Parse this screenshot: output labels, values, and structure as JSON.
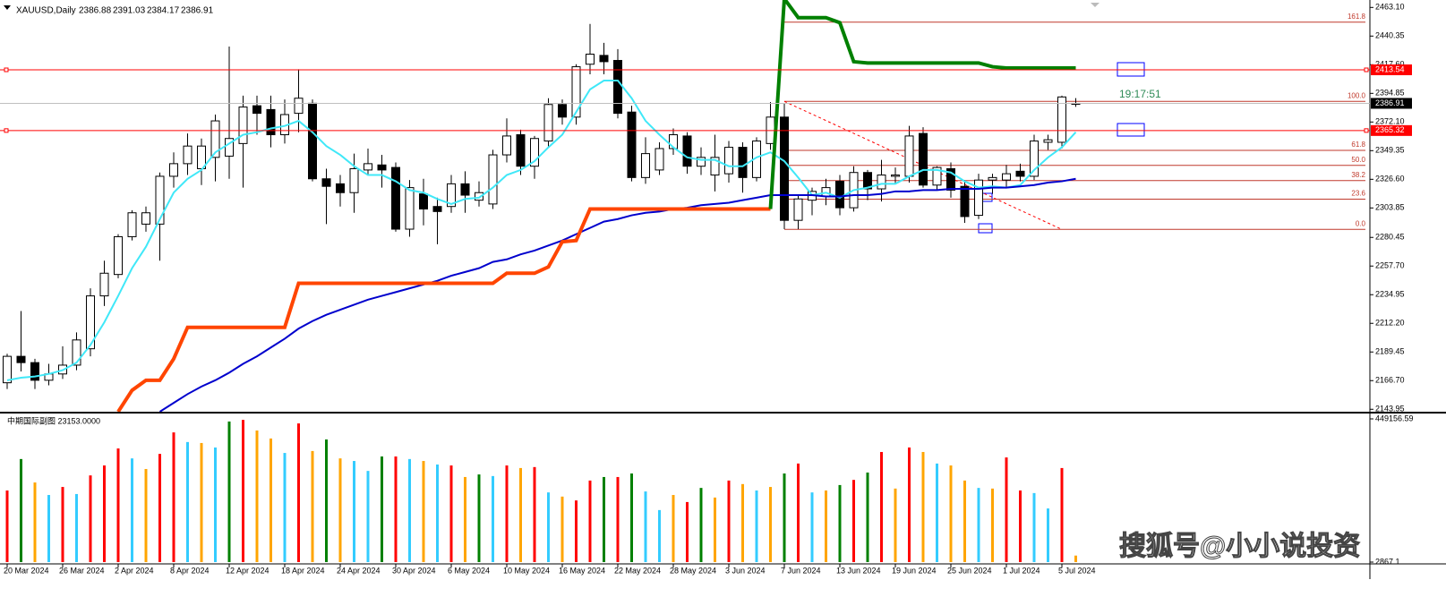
{
  "chart_data": [
    {
      "type": "candlestick",
      "title": "XAUUSD,Daily",
      "categories": [
        "20 Mar 2024",
        null,
        null,
        null,
        "26 Mar 2024",
        null,
        null,
        null,
        "2 Apr 2024",
        null,
        null,
        null,
        "8 Apr 2024",
        null,
        null,
        null,
        "12 Apr 2024",
        null,
        null,
        null,
        "18 Apr 2024",
        null,
        null,
        null,
        "24 Apr 2024",
        null,
        null,
        null,
        "30 Apr 2024",
        null,
        null,
        null,
        "6 May 2024",
        null,
        null,
        null,
        "10 May 2024",
        null,
        null,
        null,
        "16 May 2024",
        null,
        null,
        null,
        "22 May 2024",
        null,
        null,
        null,
        "28 May 2024",
        null,
        null,
        null,
        "3 Jun 2024",
        null,
        null,
        null,
        "7 Jun 2024",
        null,
        null,
        null,
        "13 Jun 2024",
        null,
        null,
        null,
        "19 Jun 2024",
        null,
        null,
        null,
        "25 Jun 2024",
        null,
        null,
        null,
        "1 Jul 2024",
        null,
        null,
        null,
        "5 Jul 2024",
        null
      ],
      "open": [
        2165,
        2186,
        2181,
        2167,
        2172,
        2179,
        2192,
        2234,
        2251,
        2281,
        2291,
        2291,
        2329,
        2339,
        2335,
        2344,
        2345,
        2355,
        2385,
        2382,
        2362,
        2379,
        2387,
        2327,
        2323,
        2316,
        2334,
        2338,
        2336,
        2287,
        2315,
        2305,
        2305,
        2323,
        2310,
        2307,
        2346,
        2362,
        2337,
        2357,
        2386,
        2376,
        2418,
        2425,
        2421,
        2380,
        2328,
        2334,
        2351,
        2361,
        2337,
        2330,
        2331,
        2352,
        2328,
        2355,
        2376,
        2294,
        2310,
        2313,
        2325,
        2304,
        2332,
        2319,
        2329,
        2329,
        2363,
        2322,
        2335,
        2321,
        2298,
        2326,
        2326,
        2333,
        2329,
        2356,
        2356,
        2386.88
      ],
      "high": [
        2188,
        2222,
        2184,
        2180,
        2194,
        2205,
        2240,
        2262,
        2283,
        2302,
        2305,
        2332,
        2348,
        2363,
        2359,
        2378,
        2432,
        2393,
        2393,
        2393,
        2390,
        2414,
        2390,
        2335,
        2330,
        2347,
        2351,
        2346,
        2340,
        2326,
        2327,
        2312,
        2330,
        2333,
        2325,
        2350,
        2375,
        2366,
        2361,
        2391,
        2390,
        2418,
        2450,
        2435,
        2430,
        2385,
        2360,
        2356,
        2367,
        2364,
        2352,
        2362,
        2357,
        2356,
        2360,
        2388,
        2387,
        2314,
        2320,
        2327,
        2330,
        2337,
        2334,
        2342,
        2336,
        2369,
        2368,
        2337,
        2340,
        2326,
        2331,
        2331,
        2338,
        2339,
        2362,
        2362,
        2393,
        2391.03
      ],
      "low": [
        2160,
        2174,
        2160,
        2163,
        2168,
        2175,
        2186,
        2226,
        2248,
        2278,
        2285,
        2262,
        2320,
        2330,
        2322,
        2325,
        2327,
        2320,
        2362,
        2352,
        2355,
        2364,
        2325,
        2291,
        2305,
        2300,
        2330,
        2320,
        2285,
        2281,
        2290,
        2275,
        2300,
        2300,
        2305,
        2303,
        2340,
        2330,
        2327,
        2352,
        2370,
        2370,
        2410,
        2410,
        2375,
        2325,
        2323,
        2330,
        2346,
        2331,
        2330,
        2317,
        2324,
        2316,
        2325,
        2350,
        2287,
        2287,
        2298,
        2306,
        2298,
        2301,
        2310,
        2309,
        2323,
        2324,
        2320,
        2318,
        2312,
        2292,
        2295,
        2315,
        2320,
        2325,
        2326,
        2350,
        2351,
        2384.17
      ],
      "close": [
        2186,
        2181,
        2167,
        2172,
        2179,
        2199,
        2234,
        2252,
        2281,
        2300,
        2300,
        2329,
        2339,
        2353,
        2353,
        2373,
        2359,
        2384,
        2379,
        2362,
        2378,
        2391,
        2327,
        2321,
        2316,
        2335,
        2339,
        2334,
        2287,
        2320,
        2303,
        2301,
        2323,
        2314,
        2316,
        2346,
        2361,
        2337,
        2359,
        2386,
        2376,
        2416,
        2426,
        2420,
        2379,
        2328,
        2347,
        2351,
        2362,
        2337,
        2344,
        2344,
        2352,
        2328,
        2357,
        2376,
        2294,
        2311,
        2317,
        2320,
        2304,
        2332,
        2319,
        2330,
        2330,
        2361,
        2322,
        2336,
        2318,
        2297,
        2326,
        2328,
        2331,
        2329,
        2357,
        2358,
        2392,
        2386.91
      ],
      "lines": [
        {
          "color": "#40e8f8",
          "width": 2,
          "values": [
            2167,
            2169,
            2170,
            2172,
            2175,
            2181,
            2195,
            2213,
            2234,
            2256,
            2273,
            2295,
            2316,
            2327,
            2334,
            2348,
            2355,
            2362,
            2364,
            2367,
            2369,
            2373,
            2364,
            2353,
            2346,
            2337,
            2330,
            2330,
            2325,
            2318,
            2316,
            2311,
            2307,
            2311,
            2312,
            2320,
            2330,
            2334,
            2341,
            2352,
            2362,
            2380,
            2398,
            2405,
            2405,
            2391,
            2373,
            2362,
            2352,
            2344,
            2342,
            2342,
            2337,
            2337,
            2344,
            2348,
            2341,
            2328,
            2314,
            2316,
            2312,
            2318,
            2320,
            2323,
            2323,
            2329,
            2334,
            2334,
            2332,
            2325,
            2320,
            2321,
            2320,
            2322,
            2334,
            2344,
            2352,
            2364
          ]
        },
        {
          "color": "#0000cd",
          "width": 2,
          "values": [
            null,
            null,
            null,
            null,
            null,
            null,
            null,
            null,
            null,
            null,
            null,
            2142,
            2149,
            2156,
            2162,
            2167,
            2173,
            2180,
            2186,
            2193,
            2200,
            2208,
            2214,
            2219,
            2223,
            2227,
            2231,
            2234,
            2237,
            2240,
            2243,
            2246,
            2250,
            2253,
            2256,
            2261,
            2263,
            2267,
            2270,
            2274,
            2278,
            2283,
            2288,
            2293,
            2295,
            2298,
            2300,
            2301,
            2303,
            2304,
            2306,
            2307,
            2308,
            2310,
            2312,
            2314,
            2314,
            2314,
            2314,
            2313,
            2313,
            2314,
            2314,
            2315,
            2317,
            2317,
            2318,
            2318,
            2319,
            2319,
            2319,
            2320,
            2320,
            2321,
            2322,
            2324,
            2325,
            2327
          ]
        },
        {
          "color": "#ff4500",
          "width": 4,
          "values": [
            null,
            null,
            null,
            null,
            null,
            null,
            null,
            null,
            2142,
            2159,
            2167,
            2167,
            2184,
            2209,
            2209,
            2209,
            2209,
            2209,
            2209,
            2209,
            2209,
            2244,
            2244,
            2244,
            2244,
            2244,
            2244,
            2244,
            2244,
            2244,
            2244,
            2244,
            2244,
            2244,
            2244,
            2244,
            2252,
            2252,
            2252,
            2257,
            2277,
            2278,
            2303,
            2303,
            2303,
            2303,
            2303,
            2303,
            2303,
            2303,
            2303,
            2303,
            2303,
            2303,
            2303,
            2303,
            null,
            null,
            null,
            null,
            null,
            null,
            null,
            null,
            null,
            null,
            null,
            null,
            null,
            null,
            null,
            null,
            null,
            null,
            null,
            null,
            null,
            null
          ]
        },
        {
          "color": "#008000",
          "width": 4,
          "values": [
            null,
            null,
            null,
            null,
            null,
            null,
            null,
            null,
            null,
            null,
            null,
            null,
            null,
            null,
            null,
            null,
            null,
            null,
            null,
            null,
            null,
            null,
            null,
            null,
            null,
            null,
            null,
            null,
            null,
            null,
            null,
            null,
            null,
            null,
            null,
            null,
            null,
            null,
            null,
            null,
            null,
            null,
            null,
            null,
            null,
            null,
            null,
            null,
            null,
            null,
            null,
            null,
            null,
            null,
            null,
            2303,
            2470,
            2455,
            2455,
            2455,
            2451,
            2420,
            2419,
            2419,
            2419,
            2419,
            2419,
            2419,
            2419,
            2419,
            2419,
            2416,
            2415,
            2415,
            2415,
            2415,
            2415,
            2415
          ]
        }
      ],
      "hlines": [
        {
          "value": 2413.54,
          "color": "#ff0000"
        },
        {
          "value": 2365.32,
          "color": "#ff0000"
        }
      ],
      "price_line_color": "#c0c0c0",
      "fib": {
        "color": "#c0392b",
        "levels": [
          {
            "label": "161.8",
            "value": 2451.4
          },
          {
            "label": "100.0",
            "value": 2388.5
          },
          {
            "label": "61.8",
            "value": 2349.6
          },
          {
            "label": "50.0",
            "value": 2337.7
          },
          {
            "label": "38.2",
            "value": 2325.6
          },
          {
            "label": "23.6",
            "value": 2310.8
          },
          {
            "label": "0.0",
            "value": 2286.8
          }
        ]
      },
      "countdown": "19:17:51",
      "ylim": [
        2142,
        2469
      ],
      "yticks": [
        {
          "value": 2463.1,
          "label": "2463.10"
        },
        2440.35,
        {
          "value": 2417.6,
          "label": "2417.60"
        },
        2394.85,
        {
          "value": 2372.1,
          "label": "2372.10"
        },
        2349.35,
        {
          "value": 2326.6,
          "label": "2326.60"
        },
        2303.85,
        2280.45,
        {
          "value": 2257.7,
          "label": "2257.70"
        },
        2234.95,
        {
          "value": 2212.2,
          "label": "2212.20"
        },
        2189.45,
        {
          "value": 2166.7,
          "label": "2166.70"
        },
        2143.95
      ]
    },
    {
      "type": "bar",
      "title": "中期国际副图 23153.0000",
      "values": [
        226000,
        324000,
        251000,
        212000,
        237000,
        215000,
        273000,
        304000,
        357000,
        326000,
        293000,
        340000,
        407000,
        377000,
        374000,
        360000,
        441000,
        446000,
        413000,
        388000,
        343000,
        435000,
        349000,
        385000,
        326000,
        318000,
        287000,
        332000,
        332000,
        324000,
        318000,
        307000,
        304000,
        268000,
        276000,
        271000,
        304000,
        296000,
        299000,
        220000,
        207000,
        195000,
        257000,
        268000,
        268000,
        279000,
        223000,
        165000,
        212000,
        190000,
        234000,
        204000,
        257000,
        246000,
        226000,
        237000,
        279000,
        310000,
        220000,
        226000,
        243000,
        259000,
        282000,
        346000,
        232000,
        360000,
        346000,
        310000,
        304000,
        257000,
        234000,
        232000,
        329000,
        226000,
        218000,
        170000,
        296000,
        23153
      ],
      "colors": [
        "#ff0000",
        "#008000",
        "#ffa500",
        "#33ccff",
        "#ff0000",
        "#33ccff",
        "#ff0000",
        "#ff0000",
        "#ff0000",
        "#33ccff",
        "#ffa500",
        "#ff0000",
        "#ff0000",
        "#33ccff",
        "#ffa500",
        "#33ccff",
        "#008000",
        "#ff0000",
        "#ffa500",
        "#ffa500",
        "#33ccff",
        "#ff0000",
        "#ffa500",
        "#008000",
        "#ffa500",
        "#33ccff",
        "#33ccff",
        "#008000",
        "#ff0000",
        "#33ccff",
        "#ffa500",
        "#33ccff",
        "#ff0000",
        "#ffa500",
        "#008000",
        "#33ccff",
        "#ff0000",
        "#ffa500",
        "#ff0000",
        "#33ccff",
        "#ffa500",
        "#ff0000",
        "#ff0000",
        "#008000",
        "#ff0000",
        "#008000",
        "#33ccff",
        "#33ccff",
        "#ffa500",
        "#ff0000",
        "#008000",
        "#ffa500",
        "#ff0000",
        "#ffa500",
        "#33ccff",
        "#ffa500",
        "#008000",
        "#ff0000",
        "#33ccff",
        "#ffa500",
        "#008000",
        "#ff0000",
        "#008000",
        "#ff0000",
        "#ffa500",
        "#ff0000",
        "#ffa500",
        "#33ccff",
        "#ffa500",
        "#ffa500",
        "#33ccff",
        "#ffa500",
        "#ff0000",
        "#ff0000",
        "#33ccff",
        "#33ccff",
        "#ff0000",
        "#ffa500"
      ],
      "ylim": [
        2867.1,
        449156.59
      ],
      "yticks": [
        449156.59,
        2867.1
      ]
    }
  ],
  "watermark": "搜狐号@小小说投资"
}
